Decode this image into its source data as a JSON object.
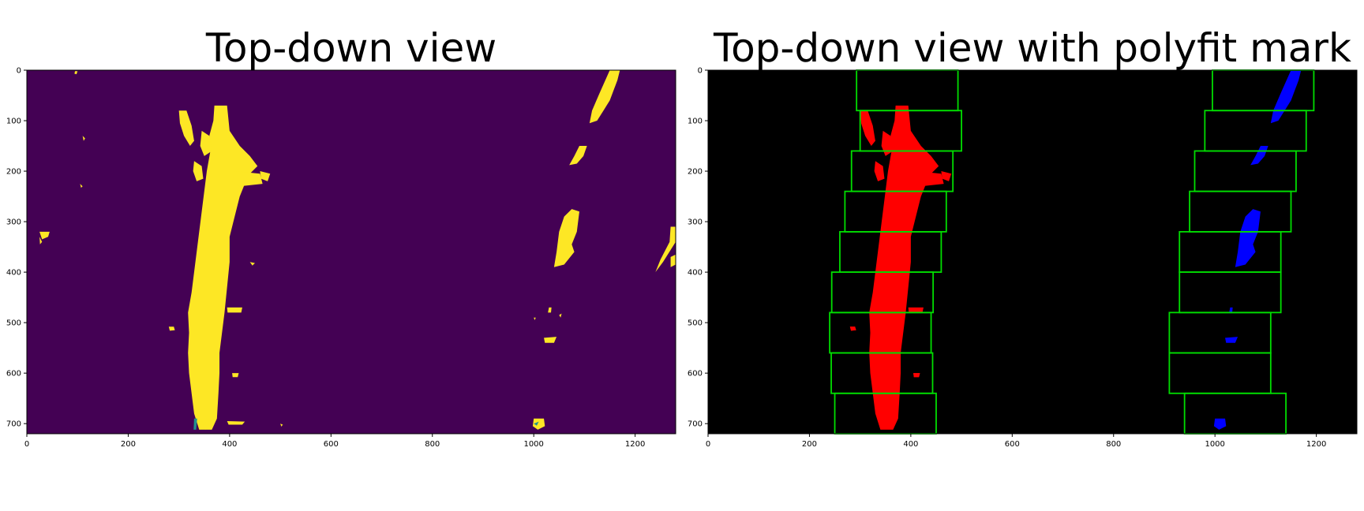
{
  "figure": {
    "panels": [
      {
        "title": "Top-down view",
        "background": "#440154",
        "lane_color": "#fde725",
        "outlier_color": "#21918c"
      },
      {
        "title": "Top-down view with polyfit mark",
        "background": "#000000",
        "left_lane_color": "#ff0000",
        "right_lane_color": "#0000ff",
        "window_color": "#00dd00"
      }
    ]
  },
  "chart_data": [
    {
      "type": "heatmap",
      "title": "Top-down view",
      "xlabel": "",
      "ylabel": "",
      "xlim": [
        0,
        1280
      ],
      "ylim": [
        720,
        0
      ],
      "xticks": [
        0,
        200,
        400,
        600,
        800,
        1000,
        1200
      ],
      "yticks": [
        0,
        100,
        200,
        300,
        400,
        500,
        600,
        700
      ],
      "grid": false,
      "colormap": "viridis"
    },
    {
      "type": "heatmap",
      "title": "Top-down view with polyfit mark",
      "xlabel": "",
      "ylabel": "",
      "xlim": [
        0,
        1280
      ],
      "ylim": [
        720,
        0
      ],
      "xticks": [
        0,
        200,
        400,
        600,
        800,
        1000,
        1200
      ],
      "yticks": [
        0,
        100,
        200,
        300,
        400,
        500,
        600,
        700
      ],
      "grid": false,
      "sliding_windows_left": [
        {
          "x0": 250,
          "x1": 450,
          "y0": 640,
          "y1": 720
        },
        {
          "x0": 243,
          "x1": 443,
          "y0": 560,
          "y1": 640
        },
        {
          "x0": 240,
          "x1": 440,
          "y0": 480,
          "y1": 560
        },
        {
          "x0": 244,
          "x1": 444,
          "y0": 400,
          "y1": 480
        },
        {
          "x0": 260,
          "x1": 460,
          "y0": 320,
          "y1": 400
        },
        {
          "x0": 270,
          "x1": 470,
          "y0": 240,
          "y1": 320
        },
        {
          "x0": 283,
          "x1": 483,
          "y0": 160,
          "y1": 240
        },
        {
          "x0": 300,
          "x1": 500,
          "y0": 80,
          "y1": 160
        },
        {
          "x0": 293,
          "x1": 493,
          "y0": 0,
          "y1": 80
        }
      ],
      "sliding_windows_right": [
        {
          "x0": 940,
          "x1": 1140,
          "y0": 640,
          "y1": 720
        },
        {
          "x0": 910,
          "x1": 1110,
          "y0": 560,
          "y1": 640
        },
        {
          "x0": 910,
          "x1": 1110,
          "y0": 480,
          "y1": 560
        },
        {
          "x0": 930,
          "x1": 1130,
          "y0": 400,
          "y1": 480
        },
        {
          "x0": 930,
          "x1": 1130,
          "y0": 320,
          "y1": 400
        },
        {
          "x0": 950,
          "x1": 1150,
          "y0": 240,
          "y1": 320
        },
        {
          "x0": 960,
          "x1": 1160,
          "y0": 160,
          "y1": 240
        },
        {
          "x0": 980,
          "x1": 1180,
          "y0": 80,
          "y1": 160
        },
        {
          "x0": 995,
          "x1": 1195,
          "y0": 0,
          "y1": 80
        }
      ]
    }
  ]
}
